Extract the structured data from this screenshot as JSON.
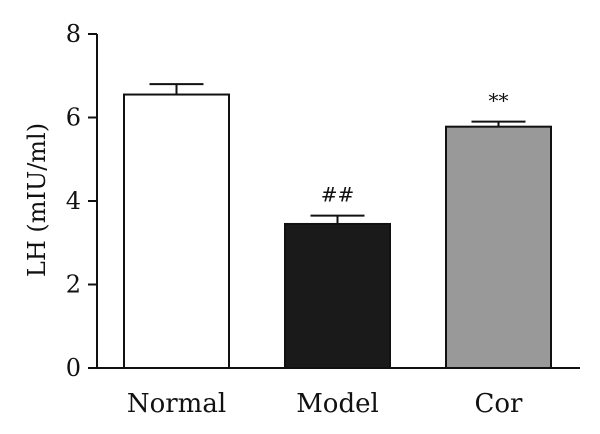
{
  "chart_data": {
    "type": "bar",
    "categories": [
      "Normal",
      "Model",
      "Cor"
    ],
    "values": [
      6.55,
      3.45,
      5.78
    ],
    "errors": [
      0.25,
      0.2,
      0.12
    ],
    "annotations": [
      "",
      "##",
      "**"
    ],
    "colors": [
      "#ffffff",
      "#1a1a1a",
      "#999999"
    ],
    "ylabel": "LH (mIU/ml)",
    "ylim": [
      0,
      8
    ],
    "yticks": [
      0,
      2,
      4,
      6,
      8
    ],
    "ytick_labels": [
      "0",
      "2",
      "4",
      "6",
      "8"
    ],
    "grid": false,
    "legend": "none"
  }
}
